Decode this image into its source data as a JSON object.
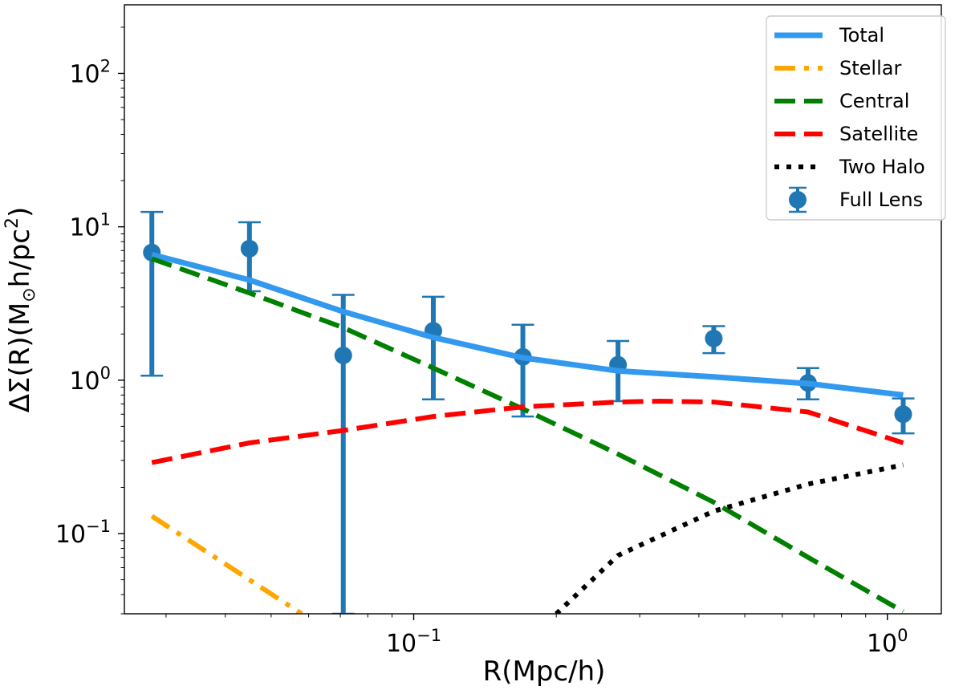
{
  "chart_data": {
    "type": "line",
    "xscale": "log",
    "yscale": "log",
    "xlim": [
      0.0245,
      1.3
    ],
    "ylim": [
      0.03,
      280
    ],
    "xlabel": "R(Mpc/h)",
    "ylabel": {
      "prefix": "ΔΣ(R)(M",
      "sub": "⊙",
      "mid": "h/pc",
      "sup": "2",
      "suffix": ")"
    },
    "x_ticks": [
      {
        "value": 0.1,
        "base": "10",
        "exp": "−1"
      },
      {
        "value": 1,
        "base": "10",
        "exp": "0"
      }
    ],
    "y_ticks": [
      {
        "value": 0.1,
        "base": "10",
        "exp": "−1"
      },
      {
        "value": 1,
        "base": "10",
        "exp": "0"
      },
      {
        "value": 10,
        "base": "10",
        "exp": "1"
      },
      {
        "value": 100,
        "base": "10",
        "exp": "2"
      }
    ],
    "legend_position": "top-right",
    "series": [
      {
        "name": "Total",
        "kind": "line",
        "color": "#3399ee",
        "style": "solid",
        "x": [
          0.028,
          0.045,
          0.071,
          0.11,
          0.17,
          0.27,
          0.43,
          0.68,
          1.08
        ],
        "y": [
          6.6,
          4.5,
          2.8,
          1.9,
          1.4,
          1.15,
          1.05,
          0.95,
          0.8
        ]
      },
      {
        "name": "Stellar",
        "kind": "line",
        "color": "#ffa500",
        "style": "dashdot",
        "x": [
          0.028,
          0.058
        ],
        "y": [
          0.13,
          0.03
        ]
      },
      {
        "name": "Central",
        "kind": "line",
        "color": "#008000",
        "style": "dashed",
        "x": [
          0.028,
          0.045,
          0.071,
          0.11,
          0.17,
          0.27,
          0.43,
          0.68,
          1.08
        ],
        "y": [
          6.2,
          3.7,
          2.2,
          1.2,
          0.65,
          0.33,
          0.16,
          0.07,
          0.031
        ]
      },
      {
        "name": "Satellite",
        "kind": "line",
        "color": "#ff0000",
        "style": "dashed",
        "x": [
          0.028,
          0.045,
          0.071,
          0.11,
          0.17,
          0.27,
          0.33,
          0.43,
          0.68,
          1.08
        ],
        "y": [
          0.29,
          0.39,
          0.47,
          0.58,
          0.67,
          0.72,
          0.73,
          0.72,
          0.62,
          0.39
        ]
      },
      {
        "name": "Two Halo",
        "kind": "line",
        "color": "#000000",
        "style": "dotted",
        "x": [
          0.2,
          0.27,
          0.43,
          0.68,
          1.08
        ],
        "y": [
          0.03,
          0.072,
          0.14,
          0.21,
          0.28
        ]
      },
      {
        "name": "Full Lens",
        "kind": "errorbar",
        "color": "#1f77b4",
        "x": [
          0.028,
          0.045,
          0.071,
          0.11,
          0.17,
          0.27,
          0.43,
          0.68,
          1.08
        ],
        "y": [
          6.8,
          7.2,
          1.45,
          2.1,
          1.42,
          1.26,
          1.87,
          0.96,
          0.6
        ],
        "yerr_low": [
          1.07,
          3.8,
          0.03,
          0.75,
          0.58,
          0.73,
          1.5,
          0.75,
          0.45
        ],
        "yerr_high": [
          12.5,
          10.7,
          3.6,
          3.5,
          2.3,
          1.8,
          2.25,
          1.2,
          0.76
        ]
      }
    ]
  }
}
